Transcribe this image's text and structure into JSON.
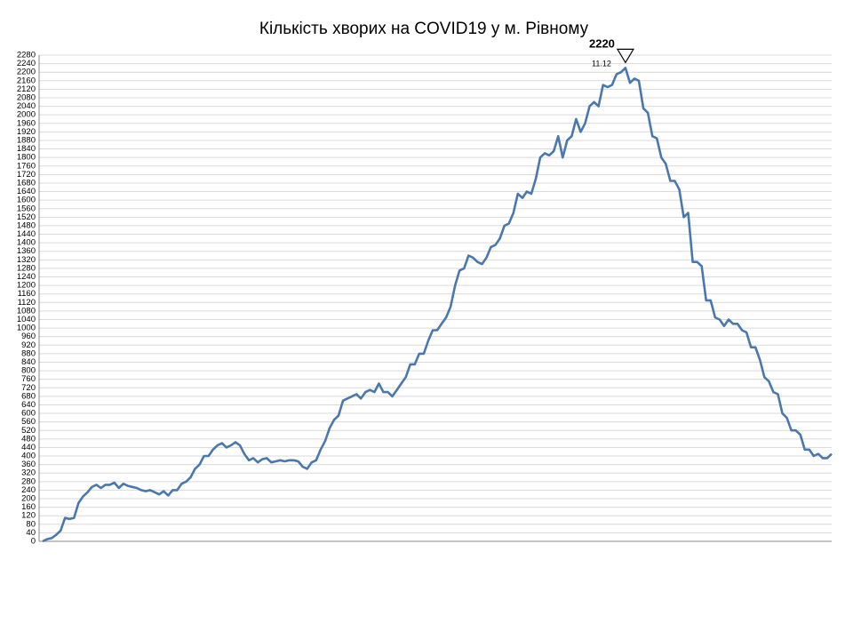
{
  "chart_data": {
    "type": "line",
    "title": "Кількість хворих на COVID19 у м. Рівному",
    "annotation": "11.12",
    "grid": true,
    "ylim": [
      0,
      2280
    ],
    "yticks": [
      0,
      40,
      80,
      120,
      160,
      200,
      240,
      280,
      320,
      360,
      400,
      440,
      480,
      520,
      560,
      600,
      640,
      680,
      720,
      760,
      800,
      840,
      880,
      920,
      960,
      1000,
      1040,
      1080,
      1120,
      1160,
      1200,
      1240,
      1280,
      1320,
      1360,
      1400,
      1440,
      1480,
      1520,
      1560,
      1600,
      1640,
      1680,
      1720,
      1760,
      1800,
      1840,
      1880,
      1920,
      1960,
      2000,
      2040,
      2080,
      2120,
      2160,
      2200,
      2240,
      2280
    ],
    "series": [
      {
        "color": "#4a78ae",
        "values": [
          0,
          10,
          15,
          30,
          50,
          110,
          105,
          110,
          180,
          210,
          230,
          255,
          265,
          250,
          265,
          265,
          275,
          250,
          270,
          260,
          255,
          250,
          240,
          235,
          240,
          230,
          220,
          235,
          215,
          240,
          240,
          270,
          280,
          300,
          340,
          360,
          400,
          400,
          430,
          450,
          460,
          440,
          450,
          465,
          450,
          410,
          380,
          390,
          370,
          385,
          390,
          370,
          375,
          380,
          375,
          380,
          380,
          375,
          350,
          340,
          370,
          380,
          430,
          470,
          530,
          570,
          590,
          660,
          670,
          680,
          690,
          670,
          700,
          710,
          700,
          740,
          700,
          700,
          680,
          710,
          740,
          770,
          830,
          830,
          880,
          880,
          940,
          990,
          990,
          1020,
          1050,
          1100,
          1200,
          1270,
          1280,
          1340,
          1330,
          1310,
          1300,
          1330,
          1380,
          1390,
          1420,
          1480,
          1490,
          1540,
          1630,
          1610,
          1640,
          1630,
          1700,
          1800,
          1820,
          1810,
          1830,
          1900,
          1800,
          1880,
          1900,
          1980,
          1920,
          1960,
          2040,
          2060,
          2040,
          2140,
          2130,
          2140,
          2190,
          2200,
          2220,
          2150,
          2170,
          2160,
          2030,
          2010,
          1900,
          1890,
          1800,
          1770,
          1690,
          1690,
          1650,
          1520,
          1540,
          1310,
          1310,
          1290,
          1130,
          1130,
          1050,
          1040,
          1010,
          1040,
          1020,
          1020,
          990,
          980,
          910,
          910,
          850,
          770,
          750,
          700,
          690,
          600,
          580,
          520,
          520,
          500,
          430,
          430,
          400,
          410,
          390,
          390,
          410
        ]
      }
    ]
  }
}
